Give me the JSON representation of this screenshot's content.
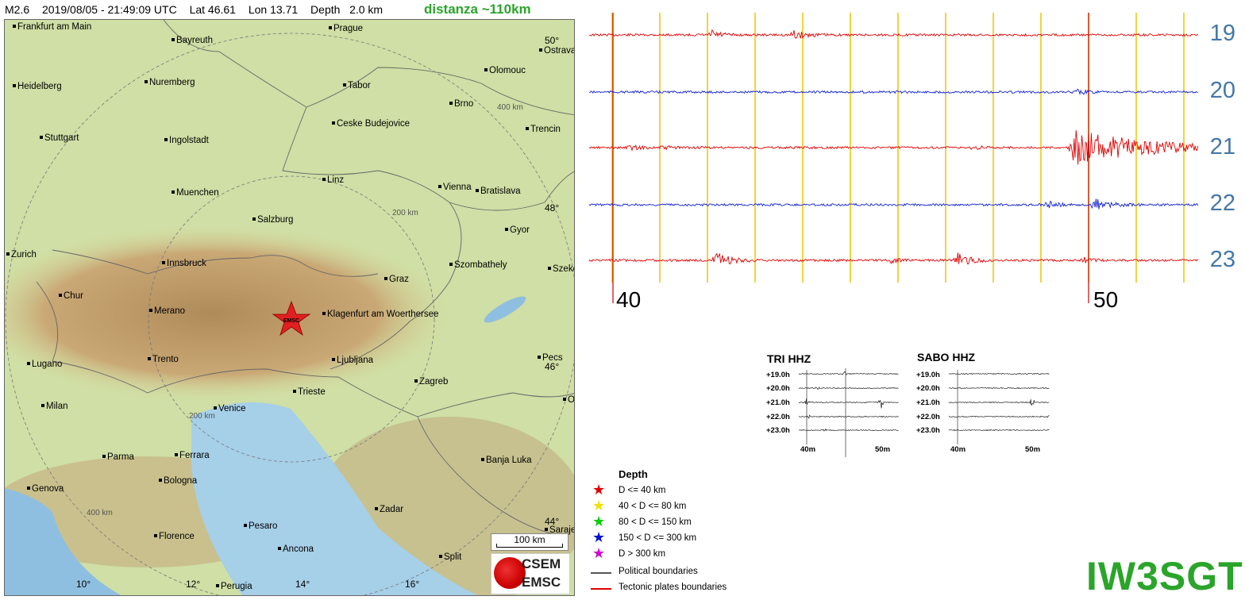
{
  "header": {
    "magnitude": "M2.6",
    "datetime": "2019/08/05 - 21:49:09 UTC",
    "lat": "Lat 46.61",
    "lon": "Lon 13.71",
    "depth": "Depth   2.0 km",
    "distance": "distanza ~110km"
  },
  "map": {
    "epicenter_label": "EMSC",
    "scale_label": "100 km",
    "logo_top": "CSEM",
    "logo_bottom": "EMSC",
    "rings": [
      "400 km",
      "200 km",
      "200 km",
      "400 km"
    ],
    "lat_labels": [
      "50°",
      "48°",
      "46°",
      "44°"
    ],
    "lon_labels": [
      "10°",
      "12°",
      "14°",
      "16°"
    ],
    "cities": [
      {
        "name": "Frankfurt am Main"
      },
      {
        "name": "Bayreuth"
      },
      {
        "name": "Prague"
      },
      {
        "name": "Ostrava"
      },
      {
        "name": "Heidelberg"
      },
      {
        "name": "Nuremberg"
      },
      {
        "name": "Tabor"
      },
      {
        "name": "Olomouc"
      },
      {
        "name": "Brno"
      },
      {
        "name": "Stuttgart"
      },
      {
        "name": "Ingolstadt"
      },
      {
        "name": "Ceske Budejovice"
      },
      {
        "name": "Trencin"
      },
      {
        "name": "Linz"
      },
      {
        "name": "Muenchen"
      },
      {
        "name": "Vienna"
      },
      {
        "name": "Bratislava"
      },
      {
        "name": "Salzburg"
      },
      {
        "name": "Gyor"
      },
      {
        "name": "Zurich"
      },
      {
        "name": "Innsbruck"
      },
      {
        "name": "Szombathely"
      },
      {
        "name": "Szeke"
      },
      {
        "name": "Graz"
      },
      {
        "name": "Chur"
      },
      {
        "name": "Merano"
      },
      {
        "name": "Klagenfurt am Woerthersee"
      },
      {
        "name": "Lugano"
      },
      {
        "name": "Trento"
      },
      {
        "name": "Ljubljana"
      },
      {
        "name": "Pecs"
      },
      {
        "name": "Zagreb"
      },
      {
        "name": "Trieste"
      },
      {
        "name": "Os"
      },
      {
        "name": "Milan"
      },
      {
        "name": "Venice"
      },
      {
        "name": "Parma"
      },
      {
        "name": "Ferrara"
      },
      {
        "name": "Banja Luka"
      },
      {
        "name": "Genova"
      },
      {
        "name": "Bologna"
      },
      {
        "name": "Zadar"
      },
      {
        "name": "Pesaro"
      },
      {
        "name": "Saraje"
      },
      {
        "name": "Florence"
      },
      {
        "name": "Ancona"
      },
      {
        "name": "Split"
      },
      {
        "name": "Perugia"
      }
    ]
  },
  "seismogram": {
    "hours": [
      "19",
      "20",
      "21",
      "22",
      "23"
    ],
    "minute_labels": [
      "40",
      "50"
    ],
    "colors": {
      "red": "#e00000",
      "blue": "#1020d0",
      "grid": "#f2c200",
      "marker": "#cc0000"
    }
  },
  "thumbs": {
    "tri": {
      "title": "TRI HHZ",
      "rows": [
        "+19.0h",
        "+20.0h",
        "+21.0h",
        "+22.0h",
        "+23.0h"
      ],
      "ticks": [
        "40m",
        "50m"
      ]
    },
    "sabo": {
      "title": "SABO HHZ",
      "rows": [
        "+19.0h",
        "+20.0h",
        "+21.0h",
        "+22.0h",
        "+23.0h"
      ],
      "ticks": [
        "40m",
        "50m"
      ]
    }
  },
  "legend": {
    "title": "Depth",
    "items": [
      {
        "label": "D <= 40 km",
        "color": "#e00000"
      },
      {
        "label": "40 < D <= 80 km",
        "color": "#f0e000"
      },
      {
        "label": "80 < D <= 150 km",
        "color": "#00d000"
      },
      {
        "label": "150 < D <= 300 km",
        "color": "#0010d0"
      },
      {
        "label": "D > 300 km",
        "color": "#d000d0"
      }
    ],
    "lines": [
      {
        "label": "Political boundaries",
        "color": "#555555"
      },
      {
        "label": "Tectonic plates boundaries",
        "color": "#e00000"
      }
    ]
  },
  "callsign": "IW3SGT"
}
